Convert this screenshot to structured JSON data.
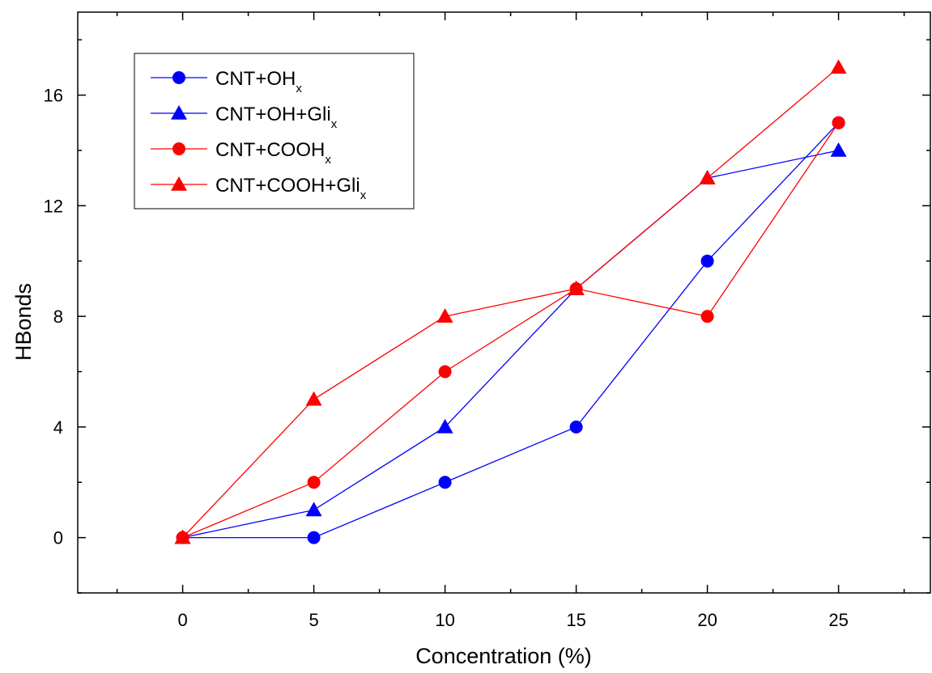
{
  "chart_data": {
    "type": "line",
    "xlabel": "Concentration (%)",
    "ylabel": "HBonds",
    "xlim": [
      -4,
      28.5
    ],
    "ylim": [
      -2,
      19
    ],
    "xticks": [
      0,
      5,
      10,
      15,
      20,
      25
    ],
    "yticks": [
      0,
      4,
      8,
      12,
      16
    ],
    "x_minor_step": 2.5,
    "y_minor_step": 2,
    "grid": false,
    "legend_position": "top-left",
    "series": [
      {
        "name": "CNT+OH",
        "subscript": "x",
        "color": "#0000ff",
        "marker": "circle",
        "x": [
          0,
          5,
          10,
          15,
          20,
          25
        ],
        "values": [
          0,
          0,
          2,
          4,
          10,
          15
        ]
      },
      {
        "name": "CNT+OH+Gli",
        "subscript": "x",
        "color": "#0000ff",
        "marker": "triangle",
        "x": [
          0,
          5,
          10,
          15,
          20,
          25
        ],
        "values": [
          0,
          1,
          4,
          9,
          13,
          14
        ]
      },
      {
        "name": "CNT+COOH",
        "subscript": "x",
        "color": "#ff0000",
        "marker": "circle",
        "x": [
          0,
          5,
          10,
          15,
          20,
          25
        ],
        "values": [
          0,
          2,
          6,
          9,
          8,
          15
        ]
      },
      {
        "name": "CNT+COOH+Gli",
        "subscript": "x",
        "color": "#ff0000",
        "marker": "triangle",
        "x": [
          0,
          5,
          10,
          15,
          20,
          25
        ],
        "values": [
          0,
          5,
          8,
          9,
          13,
          17
        ]
      }
    ]
  }
}
